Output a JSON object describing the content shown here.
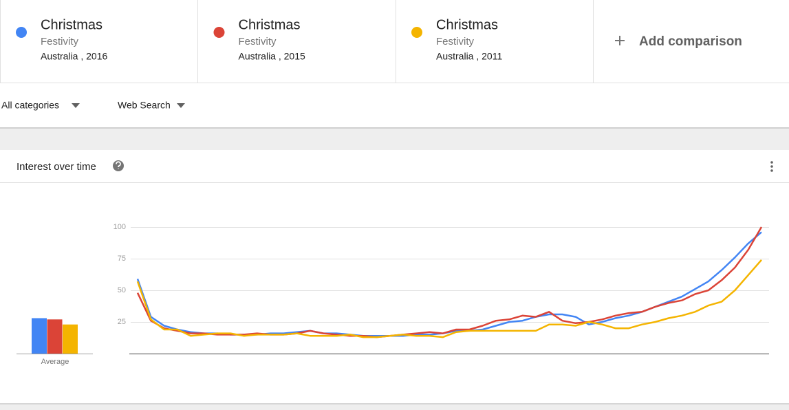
{
  "comparisons": [
    {
      "term": "Christmas",
      "category": "Festivity",
      "region_year": "Australia , 2016",
      "color": "#4285f4"
    },
    {
      "term": "Christmas",
      "category": "Festivity",
      "region_year": "Australia , 2015",
      "color": "#db4437"
    },
    {
      "term": "Christmas",
      "category": "Festivity",
      "region_year": "Australia , 2011",
      "color": "#f4b400"
    }
  ],
  "add_comparison": "Add comparison",
  "filters": [
    "All categories",
    "Web Search"
  ],
  "panel_title": "Interest over time",
  "chart_data": [
    {
      "type": "line",
      "ylim": [
        0,
        100
      ],
      "yticks": [
        25,
        50,
        75,
        100
      ],
      "grid": true,
      "series": [
        {
          "color": "#4285f4",
          "values": [
            59,
            29,
            22,
            19,
            17,
            16,
            16,
            15,
            15,
            15,
            16,
            16,
            17,
            18,
            16,
            16,
            15,
            14,
            14,
            14,
            14,
            15,
            15,
            16,
            18,
            18,
            19,
            22,
            25,
            26,
            29,
            31,
            31,
            29,
            23,
            25,
            28,
            30,
            33,
            37,
            41,
            45,
            51,
            57,
            66,
            76,
            87,
            96
          ]
        },
        {
          "color": "#db4437",
          "values": [
            48,
            26,
            20,
            18,
            16,
            16,
            15,
            15,
            15,
            16,
            15,
            15,
            16,
            18,
            16,
            15,
            14,
            14,
            13,
            14,
            15,
            16,
            17,
            16,
            19,
            19,
            22,
            26,
            27,
            30,
            29,
            33,
            26,
            24,
            25,
            27,
            30,
            32,
            33,
            37,
            40,
            42,
            47,
            50,
            58,
            68,
            82,
            100
          ]
        },
        {
          "color": "#f4b400",
          "values": [
            57,
            27,
            19,
            19,
            14,
            15,
            16,
            16,
            14,
            15,
            15,
            15,
            16,
            14,
            14,
            14,
            15,
            13,
            13,
            14,
            15,
            14,
            14,
            13,
            17,
            18,
            18,
            18,
            18,
            18,
            18,
            23,
            23,
            22,
            25,
            23,
            20,
            20,
            23,
            25,
            28,
            30,
            33,
            38,
            41,
            50,
            62,
            74
          ]
        }
      ]
    },
    {
      "type": "bar",
      "ylim": [
        0,
        100
      ],
      "categories": [
        "Average"
      ],
      "series": [
        {
          "color": "#4285f4",
          "values": [
            28
          ]
        },
        {
          "color": "#db4437",
          "values": [
            27
          ]
        },
        {
          "color": "#f4b400",
          "values": [
            23
          ]
        }
      ]
    }
  ]
}
